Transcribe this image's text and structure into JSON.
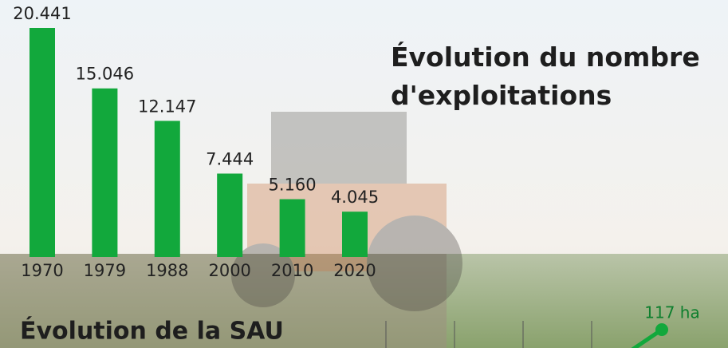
{
  "chart_data": {
    "type": "bar",
    "title": "Évolution du nombre d'exploitations",
    "categories": [
      "1970",
      "1979",
      "1988",
      "2000",
      "2010",
      "2020"
    ],
    "values": [
      20441,
      15046,
      12147,
      7444,
      5160,
      4045
    ],
    "value_labels": [
      "20.441",
      "15.046",
      "12.147",
      "7.444",
      "5.160",
      "4.045"
    ],
    "color": "#12a83c"
  },
  "sau_section": {
    "title": "Évolution de la SAU",
    "annotation": "117 ha"
  }
}
